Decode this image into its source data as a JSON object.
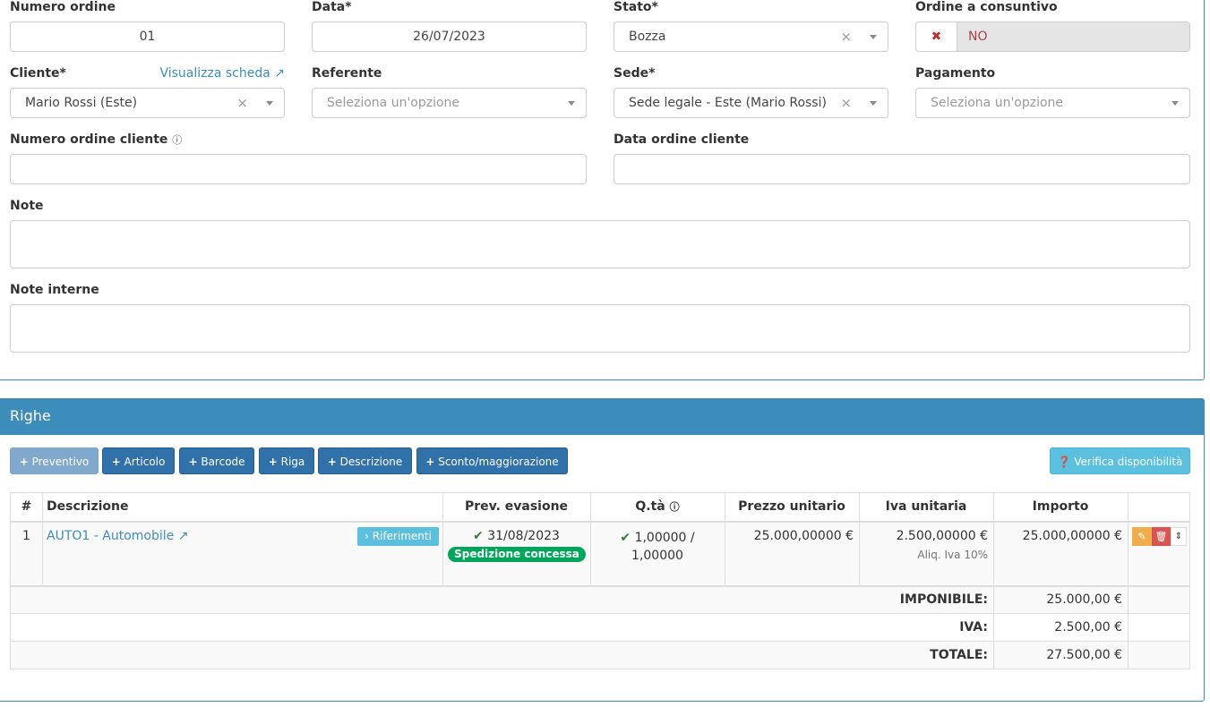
{
  "form": {
    "numero_ordine": {
      "label": "Numero ordine",
      "value": "01"
    },
    "data": {
      "label": "Data*",
      "value": "26/07/2023"
    },
    "stato": {
      "label": "Stato*",
      "value": "Bozza"
    },
    "consuntivo": {
      "label": "Ordine a consuntivo",
      "value": "NO"
    },
    "cliente": {
      "label": "Cliente*",
      "link": "Visualizza scheda",
      "value": "Mario Rossi (Este)"
    },
    "referente": {
      "label": "Referente",
      "placeholder": "Seleziona un'opzione"
    },
    "sede": {
      "label": "Sede*",
      "value": "Sede legale - Este (Mario Rossi)"
    },
    "pagamento": {
      "label": "Pagamento",
      "placeholder": "Seleziona un'opzione"
    },
    "numero_ordine_cliente": {
      "label": "Numero ordine cliente",
      "value": ""
    },
    "data_ordine_cliente": {
      "label": "Data ordine cliente",
      "value": ""
    },
    "note": {
      "label": "Note",
      "value": ""
    },
    "note_interne": {
      "label": "Note interne",
      "value": ""
    }
  },
  "righe": {
    "title": "Righe",
    "buttons": [
      "Preventivo",
      "Articolo",
      "Barcode",
      "Riga",
      "Descrizione",
      "Sconto/maggiorazione"
    ],
    "verifica": "Verifica disponibilità",
    "columns": [
      "#",
      "Descrizione",
      "Prev. evasione",
      "Q.tà",
      "Prezzo unitario",
      "Iva unitaria",
      "Importo"
    ],
    "rows": [
      {
        "n": "1",
        "descrizione": "AUTO1 - Automobile",
        "riferimenti": "Riferimenti",
        "data": "31/08/2023",
        "badge": "Spedizione concessa",
        "qta": "1,00000 /",
        "qta2": "1,00000",
        "prezzo": "25.000,00000 €",
        "iva": "2.500,00000 €",
        "aliq": "Aliq. Iva 10%",
        "importo": "25.000,00000 €"
      }
    ],
    "totals": [
      {
        "label": "IMPONIBILE:",
        "value": "25.000,00 €"
      },
      {
        "label": "IVA:",
        "value": "2.500,00 €"
      },
      {
        "label": "TOTALE:",
        "value": "27.500,00 €"
      }
    ]
  },
  "colors": {
    "primary": "#3c8dbc",
    "button": "#3071a9",
    "info": "#5bc0de",
    "success": "#00a65a",
    "warning": "#f0ad4e",
    "danger": "#d9534f"
  }
}
